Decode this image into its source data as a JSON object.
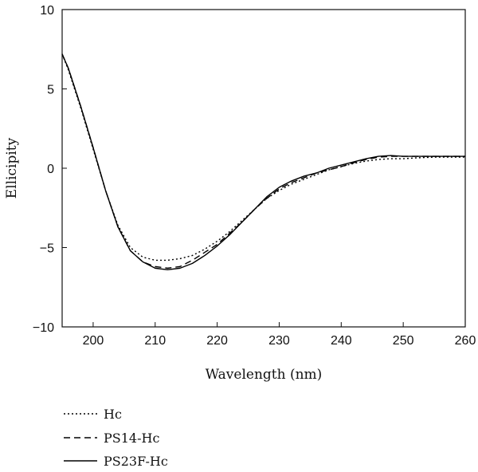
{
  "chart_data": {
    "type": "line",
    "title": "",
    "xlabel": "Wavelength (nm)",
    "ylabel": "Ellicipity",
    "xlim": [
      195,
      260
    ],
    "ylim": [
      -10,
      10
    ],
    "xticks": [
      200,
      210,
      220,
      230,
      240,
      250,
      260
    ],
    "yticks": [
      -10,
      -5,
      0,
      5,
      10
    ],
    "xtick_labels": [
      "200",
      "210",
      "220",
      "230",
      "240",
      "250",
      "260"
    ],
    "ytick_labels": [
      "−10",
      "−5",
      "0",
      "5",
      "10"
    ],
    "grid": false,
    "legend": "bottom-left, below plot",
    "series": [
      {
        "name": "Hc",
        "style": "dotted",
        "color": "#000000",
        "points": [
          [
            195,
            7.2
          ],
          [
            196,
            6.2
          ],
          [
            198,
            3.8
          ],
          [
            200,
            1.2
          ],
          [
            202,
            -1.4
          ],
          [
            204,
            -3.6
          ],
          [
            206,
            -5.0
          ],
          [
            208,
            -5.6
          ],
          [
            210,
            -5.8
          ],
          [
            212,
            -5.8
          ],
          [
            214,
            -5.7
          ],
          [
            216,
            -5.5
          ],
          [
            218,
            -5.1
          ],
          [
            220,
            -4.6
          ],
          [
            222,
            -4.0
          ],
          [
            224,
            -3.3
          ],
          [
            226,
            -2.6
          ],
          [
            228,
            -1.9
          ],
          [
            230,
            -1.4
          ],
          [
            232,
            -1.0
          ],
          [
            234,
            -0.7
          ],
          [
            236,
            -0.4
          ],
          [
            238,
            -0.1
          ],
          [
            240,
            0.1
          ],
          [
            242,
            0.3
          ],
          [
            244,
            0.45
          ],
          [
            246,
            0.55
          ],
          [
            248,
            0.6
          ],
          [
            250,
            0.6
          ],
          [
            252,
            0.65
          ],
          [
            255,
            0.7
          ],
          [
            260,
            0.7
          ]
        ]
      },
      {
        "name": "PS14-Hc",
        "style": "dashed",
        "color": "#000000",
        "points": [
          [
            195,
            7.2
          ],
          [
            196,
            6.3
          ],
          [
            198,
            3.9
          ],
          [
            200,
            1.3
          ],
          [
            202,
            -1.4
          ],
          [
            204,
            -3.7
          ],
          [
            206,
            -5.2
          ],
          [
            208,
            -5.9
          ],
          [
            210,
            -6.2
          ],
          [
            212,
            -6.3
          ],
          [
            214,
            -6.2
          ],
          [
            216,
            -5.8
          ],
          [
            218,
            -5.3
          ],
          [
            220,
            -4.8
          ],
          [
            222,
            -4.1
          ],
          [
            224,
            -3.4
          ],
          [
            226,
            -2.6
          ],
          [
            228,
            -1.9
          ],
          [
            230,
            -1.3
          ],
          [
            232,
            -0.9
          ],
          [
            234,
            -0.6
          ],
          [
            236,
            -0.3
          ],
          [
            238,
            -0.1
          ],
          [
            240,
            0.1
          ],
          [
            242,
            0.35
          ],
          [
            244,
            0.55
          ],
          [
            246,
            0.7
          ],
          [
            248,
            0.75
          ],
          [
            250,
            0.75
          ],
          [
            252,
            0.75
          ],
          [
            255,
            0.75
          ],
          [
            260,
            0.75
          ]
        ]
      },
      {
        "name": "PS23F-Hc",
        "style": "solid",
        "color": "#000000",
        "points": [
          [
            195,
            7.2
          ],
          [
            196,
            6.3
          ],
          [
            198,
            3.9
          ],
          [
            200,
            1.3
          ],
          [
            202,
            -1.4
          ],
          [
            204,
            -3.7
          ],
          [
            206,
            -5.2
          ],
          [
            208,
            -5.9
          ],
          [
            210,
            -6.3
          ],
          [
            212,
            -6.4
          ],
          [
            214,
            -6.3
          ],
          [
            216,
            -6.0
          ],
          [
            218,
            -5.5
          ],
          [
            220,
            -4.9
          ],
          [
            222,
            -4.2
          ],
          [
            224,
            -3.4
          ],
          [
            226,
            -2.6
          ],
          [
            228,
            -1.8
          ],
          [
            230,
            -1.2
          ],
          [
            232,
            -0.8
          ],
          [
            234,
            -0.5
          ],
          [
            236,
            -0.3
          ],
          [
            238,
            0.0
          ],
          [
            240,
            0.2
          ],
          [
            242,
            0.4
          ],
          [
            244,
            0.6
          ],
          [
            246,
            0.75
          ],
          [
            248,
            0.8
          ],
          [
            250,
            0.75
          ],
          [
            252,
            0.75
          ],
          [
            255,
            0.75
          ],
          [
            260,
            0.75
          ]
        ]
      }
    ]
  }
}
